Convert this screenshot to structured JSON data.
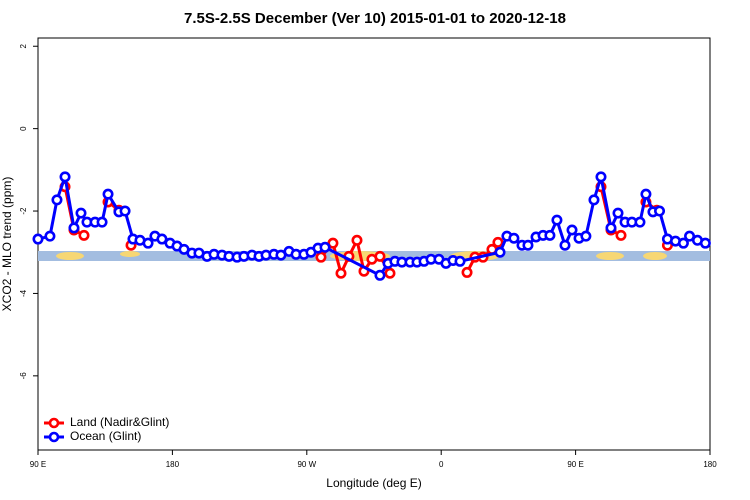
{
  "chart_data": {
    "type": "line",
    "title": "7.5S-2.5S December (Ver 10)   2015-01-01 to 2020-12-18",
    "x_label": "Longitude (deg E)",
    "y_label": "XCO2 - MLO trend (ppm)",
    "xlim": [
      90,
      540
    ],
    "ylim": [
      -7.8,
      2.2
    ],
    "xticks": [
      {
        "value": 90,
        "label": "90 E"
      },
      {
        "value": 180,
        "label": "180"
      },
      {
        "value": 270,
        "label": "90 W"
      },
      {
        "value": 360,
        "label": "0"
      },
      {
        "value": 450,
        "label": "90 E"
      },
      {
        "value": 540,
        "label": "180"
      }
    ],
    "yticks": [
      2,
      0,
      -2,
      -4,
      -6
    ],
    "legend": "bottom-left",
    "series": [
      {
        "name": "Land (Nadir&Glint)",
        "color": "#ff0000",
        "x": [
          108.1,
          114.1,
          120.8,
          null,
          136.9,
          144.2,
          null,
          152.3,
          null,
          279.5,
          287.5,
          292.9,
          298.2,
          303.6,
          308.3,
          313.6,
          319,
          325.7,
          null,
          377.3,
          382.6,
          388,
          394,
          398,
          null,
          467,
          473.7,
          480.4,
          null,
          497.1,
          504.4,
          null,
          511.5
        ],
        "values": [
          -1.41,
          -2.46,
          -2.59,
          null,
          -1.78,
          -1.98,
          null,
          -2.83,
          null,
          -3.12,
          -2.78,
          -3.51,
          -3.1,
          -2.71,
          -3.46,
          -3.17,
          -3.1,
          -3.51,
          null,
          -3.49,
          -3.12,
          -3.12,
          -2.93,
          -2.76,
          null,
          -1.41,
          -2.46,
          -2.59,
          null,
          -1.78,
          -1.98,
          null,
          -2.83
        ]
      },
      {
        "name": "Ocean (Glint)",
        "color": "#0000ff",
        "x": [
          90,
          98,
          102.7,
          108.1,
          114.1,
          118.8,
          122.8,
          128.2,
          132.9,
          136.9,
          144.2,
          148.3,
          153.6,
          158.3,
          163.7,
          168.3,
          173,
          178.4,
          183.1,
          187.8,
          193.1,
          197.8,
          203.2,
          207.9,
          213.2,
          217.9,
          223.3,
          227.9,
          233.3,
          238,
          242.7,
          248,
          252.7,
          258.1,
          262.8,
          268.1,
          272.8,
          277.5,
          282.2,
          319,
          324.4,
          329,
          333.7,
          339.1,
          343.8,
          348.5,
          353.2,
          358.5,
          363.2,
          367.9,
          372.6,
          399.4,
          404,
          408.7,
          414.1,
          418.1,
          423.5,
          428.2,
          432.8,
          437.5,
          442.9,
          447.6,
          452.3,
          456.9,
          462.3,
          467,
          473.7,
          478.4,
          483.1,
          487.7,
          493.1,
          497.1,
          501.8,
          506.2,
          511.5,
          516.9,
          522.2,
          526.3,
          531.6,
          536.9
        ],
        "values": [
          -2.68,
          -2.61,
          -1.73,
          -1.17,
          -2.41,
          -2.05,
          -2.27,
          -2.27,
          -2.27,
          -1.59,
          -2.02,
          -2.0,
          -2.68,
          -2.71,
          -2.78,
          -2.61,
          -2.68,
          -2.78,
          -2.85,
          -2.93,
          -3.02,
          -3.02,
          -3.1,
          -3.05,
          -3.07,
          -3.1,
          -3.12,
          -3.1,
          -3.07,
          -3.1,
          -3.07,
          -3.05,
          -3.07,
          -2.98,
          -3.05,
          -3.05,
          -3.0,
          -2.9,
          -2.88,
          -3.56,
          -3.27,
          -3.22,
          -3.24,
          -3.24,
          -3.24,
          -3.22,
          -3.17,
          -3.17,
          -3.27,
          -3.2,
          -3.22,
          -3.0,
          -2.61,
          -2.66,
          -2.83,
          -2.83,
          -2.63,
          -2.59,
          -2.59,
          -2.22,
          -2.83,
          -2.46,
          -2.66,
          -2.61,
          -1.73,
          -1.17,
          -2.41,
          -2.05,
          -2.27,
          -2.27,
          -2.27,
          -1.59,
          -2.02,
          -2.0,
          -2.68,
          -2.73,
          -2.78,
          -2.61,
          -2.71,
          -2.78
        ]
      }
    ]
  }
}
